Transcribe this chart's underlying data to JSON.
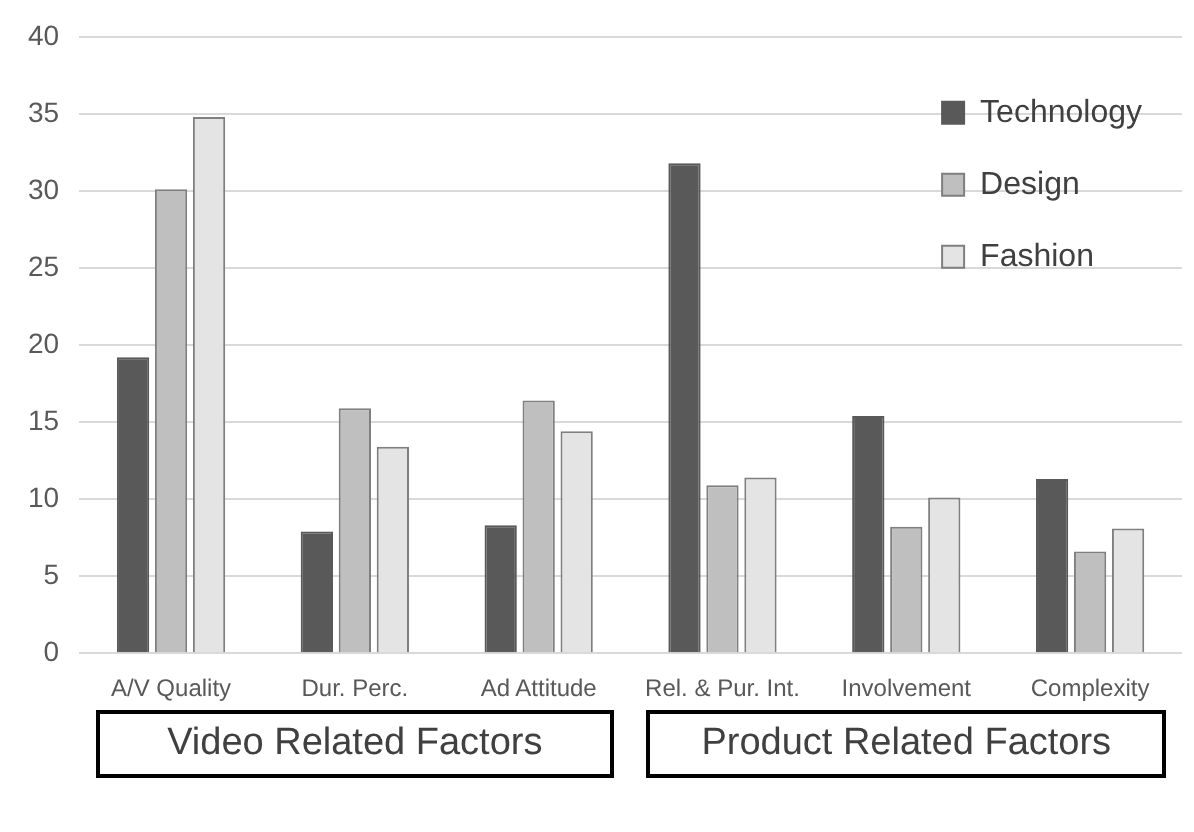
{
  "chart_data": {
    "type": "bar",
    "categories": [
      "A/V Quality",
      "Dur. Perc.",
      "Ad Attitude",
      "Rel. & Pur. Int.",
      "Involvement",
      "Complexity"
    ],
    "series": [
      {
        "name": "Technology",
        "color": "#595959",
        "values": [
          19.2,
          7.9,
          8.3,
          31.8,
          15.4,
          11.3
        ]
      },
      {
        "name": "Design",
        "color": "#bfbfbf",
        "values": [
          30.1,
          15.9,
          16.4,
          10.9,
          8.2,
          6.6
        ]
      },
      {
        "name": "Fashion",
        "color": "#e4e4e4",
        "values": [
          34.8,
          13.4,
          14.4,
          11.4,
          10.1,
          8.1
        ]
      }
    ],
    "ylim": [
      0,
      40
    ],
    "yticks": [
      0,
      5,
      10,
      15,
      20,
      25,
      30,
      35,
      40
    ],
    "grid": "y",
    "legend": "top right",
    "annotations": [
      "Video Related Factors",
      "Product Related Factors"
    ]
  }
}
